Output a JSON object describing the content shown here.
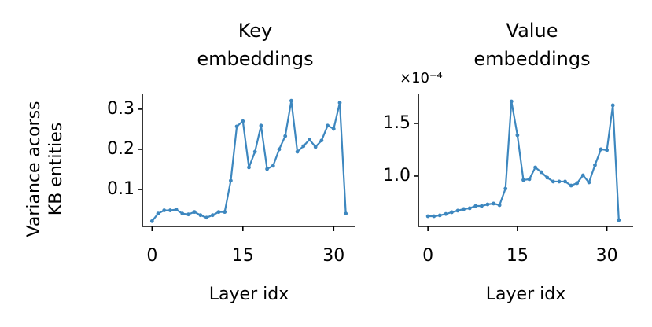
{
  "chart_data": [
    {
      "type": "line",
      "title": [
        "Key",
        "embeddings"
      ],
      "ylabel": [
        "Variance acorss",
        "KB entities"
      ],
      "xlabel": "Layer idx",
      "x": [
        0,
        1,
        2,
        3,
        4,
        5,
        6,
        7,
        8,
        9,
        10,
        11,
        12,
        13,
        14,
        15,
        16,
        17,
        18,
        19,
        20,
        21,
        22,
        23,
        24,
        25,
        26,
        27,
        28,
        29,
        30,
        31,
        32
      ],
      "values": [
        0.021,
        0.04,
        0.048,
        0.048,
        0.05,
        0.04,
        0.038,
        0.044,
        0.036,
        0.03,
        0.036,
        0.044,
        0.044,
        0.122,
        0.257,
        0.27,
        0.155,
        0.194,
        0.259,
        0.151,
        0.159,
        0.2,
        0.233,
        0.321,
        0.194,
        0.208,
        0.224,
        0.206,
        0.222,
        0.259,
        0.251,
        0.316,
        0.04
      ],
      "color": "#3d87bf",
      "xlim": [
        -1.6,
        33.6
      ],
      "ylim": [
        0.008,
        0.337
      ],
      "xticks": [
        0,
        15,
        30
      ],
      "yticks": [
        0.1,
        0.2,
        0.3
      ]
    },
    {
      "type": "line",
      "title": [
        "Value",
        "embeddings"
      ],
      "xlabel": "Layer idx",
      "offset_text": "×10⁻⁴",
      "x": [
        0,
        1,
        2,
        3,
        4,
        5,
        6,
        7,
        8,
        9,
        10,
        11,
        12,
        13,
        14,
        15,
        16,
        17,
        18,
        19,
        20,
        21,
        22,
        23,
        24,
        25,
        26,
        27,
        28,
        29,
        30,
        31,
        32
      ],
      "values": [
        0.619,
        0.619,
        0.627,
        0.64,
        0.657,
        0.672,
        0.687,
        0.694,
        0.716,
        0.716,
        0.731,
        0.739,
        0.724,
        0.881,
        1.709,
        1.388,
        0.963,
        0.97,
        1.082,
        1.037,
        0.985,
        0.948,
        0.948,
        0.948,
        0.91,
        0.933,
        1.007,
        0.94,
        1.104,
        1.254,
        1.246,
        1.672,
        0.582
      ],
      "color": "#3d87bf",
      "xlim": [
        -1.6,
        34.4
      ],
      "ylim": [
        0.522,
        1.776
      ],
      "xticks": [
        0,
        15,
        30
      ],
      "yticks": [
        {
          "value": 1,
          "label": "1.0"
        },
        1.5
      ]
    }
  ]
}
